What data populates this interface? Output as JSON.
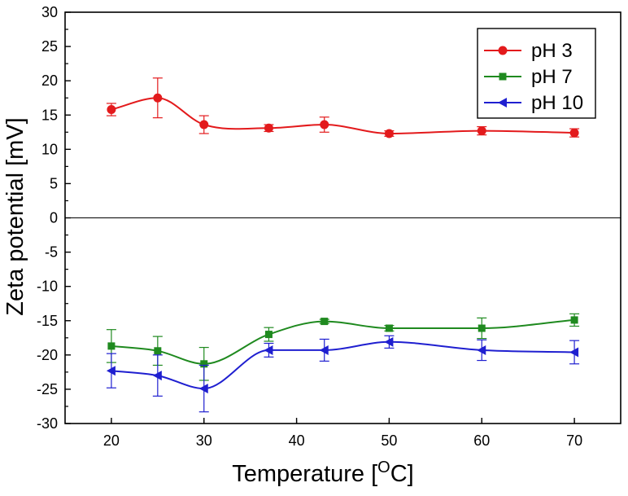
{
  "chart_data": {
    "type": "line",
    "title": "",
    "xlabel": "Temperature [",
    "xlabel_sup": "O",
    "xlabel_suffix": "C]",
    "ylabel": "Zeta potential [mV]",
    "xlim": [
      15,
      75
    ],
    "ylim": [
      -30,
      30
    ],
    "xticks": [
      20,
      30,
      40,
      50,
      60,
      70
    ],
    "yticks": [
      -30,
      -25,
      -20,
      -15,
      -10,
      -5,
      0,
      5,
      10,
      15,
      20,
      25,
      30
    ],
    "x_tick_labels": [
      "20",
      "30",
      "40",
      "50",
      "60",
      "70"
    ],
    "y_tick_labels": [
      "-30",
      "-25",
      "-20",
      "-15",
      "-10",
      "-5",
      "0",
      "5",
      "10",
      "15",
      "20",
      "25",
      "30"
    ],
    "zero_line": true,
    "legend_position": "top-right",
    "series": [
      {
        "name": "pH 3",
        "color": "#e31a1c",
        "marker": "circle",
        "x": [
          20,
          25,
          30,
          37,
          43,
          50,
          60,
          70
        ],
        "values": [
          15.8,
          17.5,
          13.6,
          13.1,
          13.6,
          12.3,
          12.7,
          12.4
        ],
        "errors": [
          0.9,
          2.9,
          1.3,
          0.5,
          1.1,
          0.4,
          0.6,
          0.6
        ]
      },
      {
        "name": "pH 7",
        "color": "#1f8a1f",
        "marker": "square",
        "x": [
          20,
          25,
          30,
          37,
          43,
          50,
          60,
          70
        ],
        "values": [
          -18.7,
          -19.4,
          -21.3,
          -17.0,
          -15.1,
          -16.1,
          -16.1,
          -14.9
        ],
        "errors": [
          2.4,
          2.1,
          2.4,
          1.0,
          0.3,
          0.4,
          1.5,
          0.9
        ]
      },
      {
        "name": "pH 10",
        "color": "#1f1fd0",
        "marker": "triangle-left",
        "x": [
          20,
          25,
          30,
          37,
          43,
          50,
          60,
          70
        ],
        "values": [
          -22.3,
          -23.0,
          -24.9,
          -19.3,
          -19.3,
          -18.1,
          -19.3,
          -19.6
        ],
        "errors": [
          2.5,
          3.0,
          3.4,
          1.0,
          1.6,
          0.9,
          1.5,
          1.7
        ]
      }
    ]
  }
}
